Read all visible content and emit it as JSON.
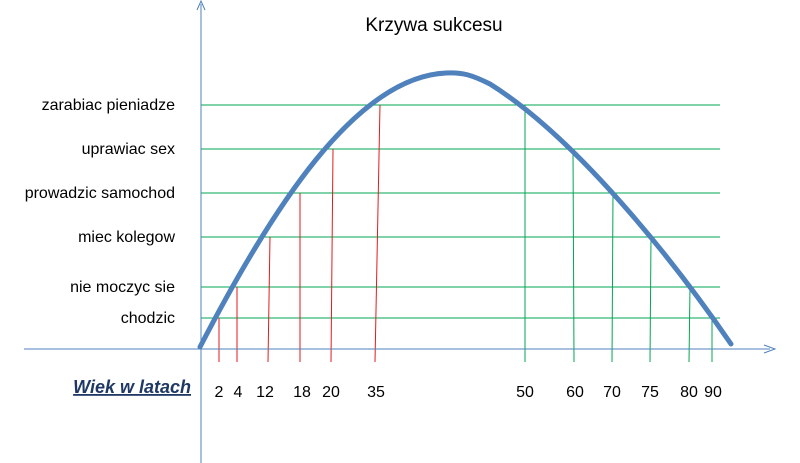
{
  "title": "Krzywa sukcesu",
  "x_axis_label": "Wiek w latach",
  "colors": {
    "curve": "#4f81bd",
    "axis": "#4f81bd",
    "level_line": "#00a651",
    "rising_marker": "#e31a1c",
    "falling_marker": "#00a651",
    "axis_label": "#1f3864"
  },
  "levels": [
    {
      "label": "zarabiac pieniadze",
      "rise_age": "35",
      "fall_age": "50"
    },
    {
      "label": "uprawiac sex",
      "rise_age": "20",
      "fall_age": "60"
    },
    {
      "label": "prowadzic samochod",
      "rise_age": "18",
      "fall_age": "70"
    },
    {
      "label": "miec kolegow",
      "rise_age": "12",
      "fall_age": "75"
    },
    {
      "label": "nie moczyc sie",
      "rise_age": "4",
      "fall_age": "80"
    },
    {
      "label": "chodzic",
      "rise_age": "2",
      "fall_age": "90"
    }
  ],
  "ages": [
    "2",
    "4",
    "12",
    "18",
    "20",
    "35",
    "50",
    "60",
    "70",
    "75",
    "80",
    "90"
  ]
}
